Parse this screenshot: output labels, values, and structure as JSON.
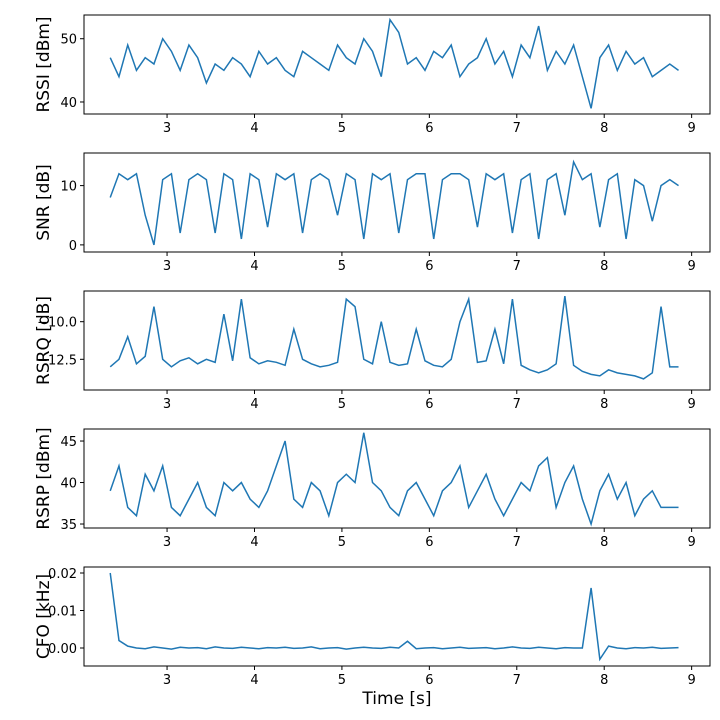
{
  "chart_data": [
    {
      "type": "line",
      "ylabel": "RSSI [dBm]",
      "color": "#1f77b4",
      "x": [
        2.35,
        2.45,
        2.55,
        2.65,
        2.75,
        2.85,
        2.95,
        3.05,
        3.15,
        3.25,
        3.35,
        3.45,
        3.55,
        3.65,
        3.75,
        3.85,
        3.95,
        4.05,
        4.15,
        4.25,
        4.35,
        4.45,
        4.55,
        4.65,
        4.75,
        4.85,
        4.95,
        5.05,
        5.15,
        5.25,
        5.35,
        5.45,
        5.55,
        5.65,
        5.75,
        5.85,
        5.95,
        6.05,
        6.15,
        6.25,
        6.35,
        6.45,
        6.55,
        6.65,
        6.75,
        6.85,
        6.95,
        7.05,
        7.15,
        7.25,
        7.35,
        7.45,
        7.55,
        7.65,
        7.75,
        7.85,
        7.95,
        8.05,
        8.15,
        8.25,
        8.35,
        8.45,
        8.55,
        8.65,
        8.75,
        8.85
      ],
      "values": [
        47,
        44,
        49,
        45,
        47,
        46,
        50,
        48,
        45,
        49,
        47,
        43,
        46,
        45,
        47,
        46,
        44,
        48,
        46,
        47,
        45,
        44,
        48,
        47,
        46,
        45,
        49,
        47,
        46,
        50,
        48,
        44,
        53,
        51,
        46,
        47,
        45,
        48,
        47,
        49,
        44,
        46,
        47,
        50,
        46,
        48,
        44,
        49,
        47,
        52,
        45,
        48,
        46,
        49,
        44,
        39,
        47,
        49,
        45,
        48,
        46,
        47,
        44,
        45,
        46,
        45
      ],
      "xlim": [
        2.05,
        9.21
      ],
      "ylim": [
        38.1,
        53.75
      ],
      "xticks": [
        3,
        4,
        5,
        6,
        7,
        8,
        9
      ],
      "yticks": [
        40,
        50
      ]
    },
    {
      "type": "line",
      "ylabel": "SNR [dB]",
      "color": "#1f77b4",
      "x": [
        2.35,
        2.45,
        2.55,
        2.65,
        2.75,
        2.85,
        2.95,
        3.05,
        3.15,
        3.25,
        3.35,
        3.45,
        3.55,
        3.65,
        3.75,
        3.85,
        3.95,
        4.05,
        4.15,
        4.25,
        4.35,
        4.45,
        4.55,
        4.65,
        4.75,
        4.85,
        4.95,
        5.05,
        5.15,
        5.25,
        5.35,
        5.45,
        5.55,
        5.65,
        5.75,
        5.85,
        5.95,
        6.05,
        6.15,
        6.25,
        6.35,
        6.45,
        6.55,
        6.65,
        6.75,
        6.85,
        6.95,
        7.05,
        7.15,
        7.25,
        7.35,
        7.45,
        7.55,
        7.65,
        7.75,
        7.85,
        7.95,
        8.05,
        8.15,
        8.25,
        8.35,
        8.45,
        8.55,
        8.65,
        8.75,
        8.85
      ],
      "values": [
        8,
        12,
        11,
        12,
        5,
        0,
        11,
        12,
        2,
        11,
        12,
        11,
        2,
        12,
        11,
        1,
        12,
        11,
        3,
        12,
        11,
        12,
        2,
        11,
        12,
        11,
        5,
        12,
        11,
        1,
        12,
        11,
        12,
        2,
        11,
        12,
        12,
        1,
        11,
        12,
        12,
        11,
        3,
        12,
        11,
        12,
        2,
        11,
        12,
        1,
        11,
        12,
        5,
        14,
        11,
        12,
        3,
        11,
        12,
        1,
        11,
        10,
        4,
        10,
        11,
        10
      ],
      "xlim": [
        2.05,
        9.21
      ],
      "ylim": [
        -1.2,
        15.5
      ],
      "xticks": [
        3,
        4,
        5,
        6,
        7,
        8,
        9
      ],
      "yticks": [
        0,
        10
      ]
    },
    {
      "type": "line",
      "ylabel": "RSRQ [dB]",
      "color": "#1f77b4",
      "x": [
        2.35,
        2.45,
        2.55,
        2.65,
        2.75,
        2.85,
        2.95,
        3.05,
        3.15,
        3.25,
        3.35,
        3.45,
        3.55,
        3.65,
        3.75,
        3.85,
        3.95,
        4.05,
        4.15,
        4.25,
        4.35,
        4.45,
        4.55,
        4.65,
        4.75,
        4.85,
        4.95,
        5.05,
        5.15,
        5.25,
        5.35,
        5.45,
        5.55,
        5.65,
        5.75,
        5.85,
        5.95,
        6.05,
        6.15,
        6.25,
        6.35,
        6.45,
        6.55,
        6.65,
        6.75,
        6.85,
        6.95,
        7.05,
        7.15,
        7.25,
        7.35,
        7.45,
        7.55,
        7.65,
        7.75,
        7.85,
        7.95,
        8.05,
        8.15,
        8.25,
        8.35,
        8.45,
        8.55,
        8.65,
        8.75,
        8.85
      ],
      "values": [
        -13,
        -12.5,
        -11,
        -12.8,
        -12.3,
        -9,
        -12.5,
        -13,
        -12.6,
        -12.4,
        -12.8,
        -12.5,
        -12.7,
        -9.5,
        -12.6,
        -8.5,
        -12.4,
        -12.8,
        -12.6,
        -12.7,
        -12.9,
        -10.5,
        -12.5,
        -12.8,
        -13,
        -12.9,
        -12.7,
        -8.5,
        -9,
        -12.5,
        -12.8,
        -10,
        -12.7,
        -12.9,
        -12.8,
        -10.5,
        -12.6,
        -12.9,
        -13,
        -12.5,
        -10,
        -8.5,
        -12.7,
        -12.6,
        -10.5,
        -12.8,
        -8.5,
        -12.9,
        -13.2,
        -13.4,
        -13.2,
        -12.8,
        -8.3,
        -12.9,
        -13.3,
        -13.5,
        -13.6,
        -13.2,
        -13.4,
        -13.5,
        -13.6,
        -13.8,
        -13.4,
        -9,
        -13,
        -13
      ],
      "xlim": [
        2.05,
        9.21
      ],
      "ylim": [
        -14.54,
        -7.96
      ],
      "xticks": [
        3,
        4,
        5,
        6,
        7,
        8,
        9
      ],
      "yticks": [
        {
          "value": -10,
          "label": "−10.0"
        },
        {
          "value": -12.5,
          "label": "−12.5"
        }
      ]
    },
    {
      "type": "line",
      "ylabel": "RSRP [dBm]",
      "color": "#1f77b4",
      "x": [
        2.35,
        2.45,
        2.55,
        2.65,
        2.75,
        2.85,
        2.95,
        3.05,
        3.15,
        3.25,
        3.35,
        3.45,
        3.55,
        3.65,
        3.75,
        3.85,
        3.95,
        4.05,
        4.15,
        4.25,
        4.35,
        4.45,
        4.55,
        4.65,
        4.75,
        4.85,
        4.95,
        5.05,
        5.15,
        5.25,
        5.35,
        5.45,
        5.55,
        5.65,
        5.75,
        5.85,
        5.95,
        6.05,
        6.15,
        6.25,
        6.35,
        6.45,
        6.55,
        6.65,
        6.75,
        6.85,
        6.95,
        7.05,
        7.15,
        7.25,
        7.35,
        7.45,
        7.55,
        7.65,
        7.75,
        7.85,
        7.95,
        8.05,
        8.15,
        8.25,
        8.35,
        8.45,
        8.55,
        8.65,
        8.75,
        8.85
      ],
      "values": [
        39,
        42,
        37,
        36,
        41,
        39,
        42,
        37,
        36,
        38,
        40,
        37,
        36,
        40,
        39,
        40,
        38,
        37,
        39,
        42,
        45,
        38,
        37,
        40,
        39,
        36,
        40,
        41,
        40,
        46,
        40,
        39,
        37,
        36,
        39,
        40,
        38,
        36,
        39,
        40,
        42,
        37,
        39,
        41,
        38,
        36,
        38,
        40,
        39,
        42,
        43,
        37,
        40,
        42,
        38,
        35,
        39,
        41,
        38,
        40,
        36,
        38,
        39,
        37,
        37,
        37
      ],
      "xlim": [
        2.05,
        9.21
      ],
      "ylim": [
        34.52,
        46.45
      ],
      "xticks": [
        3,
        4,
        5,
        6,
        7,
        8,
        9
      ],
      "yticks": [
        35,
        40,
        45
      ]
    },
    {
      "type": "line",
      "ylabel": "CFO [kHz]",
      "xlabel": "Time [s]",
      "color": "#1f77b4",
      "x": [
        2.35,
        2.45,
        2.55,
        2.65,
        2.75,
        2.85,
        2.95,
        3.05,
        3.15,
        3.25,
        3.35,
        3.45,
        3.55,
        3.65,
        3.75,
        3.85,
        3.95,
        4.05,
        4.15,
        4.25,
        4.35,
        4.45,
        4.55,
        4.65,
        4.75,
        4.85,
        4.95,
        5.05,
        5.15,
        5.25,
        5.35,
        5.45,
        5.55,
        5.65,
        5.75,
        5.85,
        5.95,
        6.05,
        6.15,
        6.25,
        6.35,
        6.45,
        6.55,
        6.65,
        6.75,
        6.85,
        6.95,
        7.05,
        7.15,
        7.25,
        7.35,
        7.45,
        7.55,
        7.65,
        7.75,
        7.85,
        7.95,
        8.05,
        8.15,
        8.25,
        8.35,
        8.45,
        8.55,
        8.65,
        8.75,
        8.85
      ],
      "values": [
        0.02,
        0.002,
        0.0005,
        0,
        -0.0002,
        0.0003,
        0,
        -0.0003,
        0.0002,
        0,
        0.0001,
        -0.0002,
        0.0003,
        0,
        -0.0001,
        0.0002,
        0,
        -0.0002,
        0.0001,
        0,
        0.0002,
        -0.0001,
        0,
        0.0003,
        -0.0002,
        0,
        0.0001,
        -0.0003,
        0,
        0.0002,
        0,
        -0.0001,
        0.0002,
        0,
        0.0018,
        -0.0002,
        0,
        0.0001,
        -0.0002,
        0,
        0.0002,
        -0.0001,
        0,
        0.0001,
        -0.0002,
        0,
        0.0003,
        0,
        -0.0001,
        0.0002,
        0,
        -0.0002,
        0.0001,
        0,
        0,
        0.016,
        -0.003,
        0.0005,
        0,
        -0.0002,
        0.0001,
        0,
        0.0002,
        -0.0001,
        0,
        0.0001
      ],
      "xlim": [
        2.05,
        9.21
      ],
      "ylim": [
        -0.0048,
        0.0216
      ],
      "xticks": [
        3,
        4,
        5,
        6,
        7,
        8,
        9
      ],
      "yticks": [
        {
          "value": 0,
          "label": "0.00"
        },
        0.01,
        0.02
      ]
    }
  ]
}
